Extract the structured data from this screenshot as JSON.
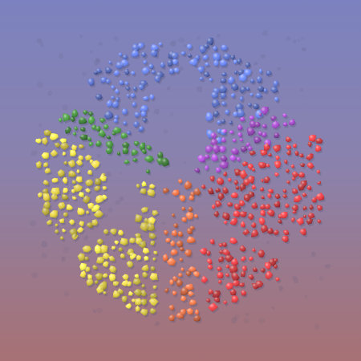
{
  "artwork": {
    "subject": "mosaic-hexagon-cube-logo",
    "palette": {
      "background_top": "#7c82bf",
      "background_bottom": "#a77175",
      "blue": "#5a74dc",
      "green": "#3c8c34",
      "yellow": "#e6d23c",
      "purple": "#a040c8",
      "orange": "#ea6a3c",
      "red": "#dc3238",
      "shadow": "#5a5a7a"
    },
    "regions": [
      {
        "id": "top-left-band",
        "color_key": "blue"
      },
      {
        "id": "top-right-band",
        "color_key": "blue"
      },
      {
        "id": "upper-left-band",
        "color_key": "green"
      },
      {
        "id": "left-block",
        "color_key": "yellow"
      },
      {
        "id": "lower-left-band",
        "color_key": "yellow"
      },
      {
        "id": "center-spine",
        "color_key": "yellow"
      },
      {
        "id": "center-purple-band",
        "color_key": "purple"
      },
      {
        "id": "lower-center-band",
        "color_key": "orange"
      },
      {
        "id": "right-block",
        "color_key": "red"
      },
      {
        "id": "lower-right-band",
        "color_key": "red"
      }
    ]
  }
}
